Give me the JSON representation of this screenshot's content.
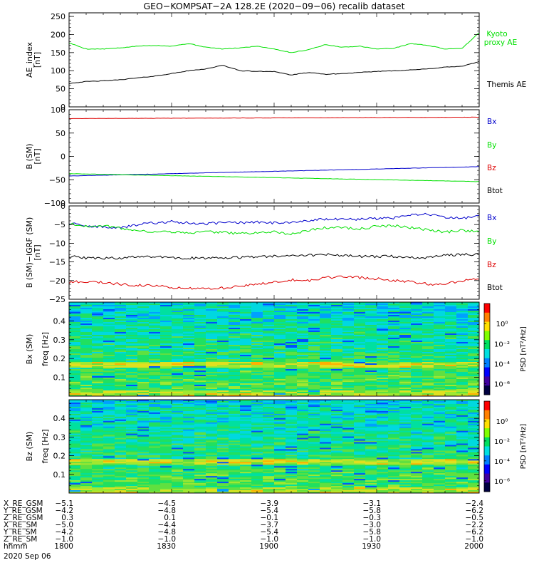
{
  "title": "GEO−KOMPSAT−2A 128.2E (2020−09−06) recalib dataset",
  "colors": {
    "black": "#000000",
    "green": "#00e000",
    "blue": "#0000cc",
    "red": "#dd0000"
  },
  "chart_data": [
    {
      "type": "line",
      "id": "ae",
      "ylabel": "AE_index",
      "yunit": "[nT]",
      "ylim": [
        0,
        260
      ],
      "yticks": [
        0,
        50,
        100,
        150,
        200,
        250
      ],
      "x": [
        0,
        0.5,
        1,
        1.5,
        2,
        2.5,
        3,
        3.5,
        4,
        4.5,
        5,
        5.5,
        6,
        6.5,
        7,
        7.5,
        8,
        8.5,
        9,
        9.5,
        10,
        10.5,
        11,
        11.5,
        12
      ],
      "series": [
        {
          "name": "Kyoto proxy AE",
          "color": "#00e000",
          "values": [
            177,
            160,
            160,
            163,
            168,
            170,
            168,
            175,
            165,
            160,
            163,
            168,
            160,
            150,
            158,
            172,
            165,
            168,
            160,
            162,
            175,
            170,
            160,
            162,
            205
          ]
        },
        {
          "name": "Themis AE",
          "color": "#000000",
          "values": [
            65,
            70,
            72,
            75,
            80,
            85,
            92,
            100,
            105,
            115,
            100,
            98,
            98,
            88,
            95,
            90,
            92,
            95,
            98,
            100,
            102,
            105,
            110,
            112,
            125
          ]
        }
      ]
    },
    {
      "type": "line",
      "id": "bsm",
      "ylabel": "B (SM)",
      "yunit": "[nT]",
      "ylim": [
        -100,
        100
      ],
      "yticks": [
        -100,
        -50,
        0,
        50,
        100
      ],
      "x": [
        0,
        12
      ],
      "series": [
        {
          "name": "Bx",
          "color": "#0000cc",
          "values": [
            -42,
            -22
          ]
        },
        {
          "name": "By",
          "color": "#00e000",
          "values": [
            -37,
            -54
          ]
        },
        {
          "name": "Bz",
          "color": "#dd0000",
          "values": [
            81,
            84
          ]
        },
        {
          "name": "Btot",
          "color": "#000000",
          "values": [
            101,
            101
          ]
        }
      ]
    },
    {
      "type": "line",
      "id": "dbsm",
      "ylabel": "B (SM)−IGRF (SM)",
      "yunit": "[nT]",
      "ylim": [
        -25,
        0
      ],
      "yticks": [
        -25,
        -20,
        -15,
        -10,
        -5,
        0
      ],
      "x": [
        0,
        0.5,
        1,
        1.5,
        2,
        2.5,
        3,
        3.5,
        4,
        4.5,
        5,
        5.5,
        6,
        6.5,
        7,
        7.5,
        8,
        8.5,
        9,
        9.5,
        10,
        10.5,
        11,
        11.5,
        12
      ],
      "series": [
        {
          "name": "Bx",
          "color": "#0000cc",
          "values": [
            -4.5,
            -5.5,
            -5.5,
            -5.8,
            -5.0,
            -4.5,
            -4.2,
            -4.5,
            -4.8,
            -4.5,
            -4.5,
            -4.3,
            -4.6,
            -4.5,
            -4.0,
            -3.5,
            -3.5,
            -3.6,
            -3.4,
            -3.2,
            -2.5,
            -2.2,
            -3.2,
            -3.3,
            -2.8
          ]
        },
        {
          "name": "By",
          "color": "#00e000",
          "values": [
            -4.8,
            -5.5,
            -5.2,
            -6.0,
            -6.8,
            -7.0,
            -7.0,
            -7.2,
            -7.0,
            -7.0,
            -7.5,
            -7.0,
            -7.0,
            -7.6,
            -6.5,
            -5.8,
            -5.8,
            -6.2,
            -5.5,
            -5.2,
            -5.8,
            -6.5,
            -7.0,
            -6.6,
            -6.8
          ]
        },
        {
          "name": "Bz",
          "color": "#dd0000",
          "values": [
            -20.5,
            -20.2,
            -20.5,
            -21.0,
            -21.2,
            -21.5,
            -21.8,
            -22.0,
            -22.2,
            -22.0,
            -21.5,
            -20.8,
            -20.5,
            -19.8,
            -20.0,
            -19.2,
            -19.0,
            -19.2,
            -19.5,
            -20.0,
            -20.3,
            -21.0,
            -20.8,
            -20.2,
            -19.3
          ]
        },
        {
          "name": "Btot",
          "color": "#000000",
          "values": [
            -13.5,
            -14.0,
            -14.0,
            -14.0,
            -13.5,
            -13.5,
            -13.8,
            -14.0,
            -14.0,
            -14.0,
            -13.8,
            -13.6,
            -13.5,
            -13.5,
            -13.2,
            -13.0,
            -13.3,
            -13.5,
            -13.6,
            -13.5,
            -13.8,
            -13.8,
            -13.2,
            -13.0,
            -13.0
          ]
        }
      ]
    },
    {
      "type": "heatmap",
      "id": "specx",
      "ylabel": "Bx (SM)",
      "yunit": "freq [Hz]",
      "ylim": [
        0,
        0.5
      ],
      "yticks": [
        0.1,
        0.2,
        0.3,
        0.4
      ],
      "colorbar": {
        "label": "PSD [nT²/Hz]",
        "ticks": [
          "10⁰",
          "10⁻²",
          "10⁻⁴",
          "10⁻⁶"
        ]
      }
    },
    {
      "type": "heatmap",
      "id": "specz",
      "ylabel": "Bz (SM)",
      "yunit": "freq [Hz]",
      "ylim": [
        0,
        0.5
      ],
      "yticks": [
        0.1,
        0.2,
        0.3,
        0.4
      ],
      "colorbar": {
        "label": "PSD [nT²/Hz]",
        "ticks": [
          "10⁰",
          "10⁻²",
          "10⁻⁴",
          "10⁻⁶"
        ]
      }
    }
  ],
  "ephemeris": {
    "rows": [
      {
        "label": "X_RE_GSM",
        "values": [
          "−5.1",
          "−4.5",
          "−3.9",
          "−3.1",
          "−2.4"
        ]
      },
      {
        "label": "Y_RE_GSM",
        "values": [
          "−4.2",
          "−4.8",
          "−5.4",
          "−5.8",
          "−6.2"
        ]
      },
      {
        "label": "Z_RE_GSM",
        "values": [
          "0.3",
          "0.1",
          "−0.1",
          "−0.3",
          "−0.5"
        ]
      },
      {
        "label": "X_RE_SM",
        "values": [
          "−5.0",
          "−4.4",
          "−3.7",
          "−3.0",
          "−2.2"
        ]
      },
      {
        "label": "Y_RE_SM",
        "values": [
          "−4.2",
          "−4.8",
          "−5.4",
          "−5.8",
          "−6.2"
        ]
      },
      {
        "label": "Z_RE_SM",
        "values": [
          "−1.0",
          "−1.0",
          "−1.0",
          "−1.0",
          "−1.0"
        ]
      },
      {
        "label": "hhmm",
        "values": [
          "1800",
          "1830",
          "1900",
          "1930",
          "2000"
        ]
      }
    ],
    "date": "2020 Sep 06"
  }
}
